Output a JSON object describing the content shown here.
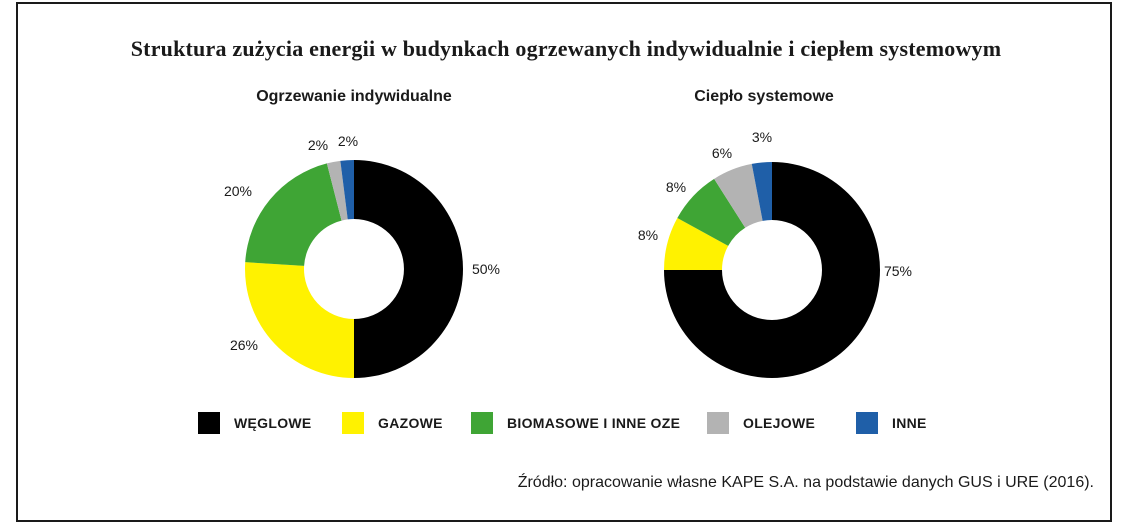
{
  "title": "Struktura zużycia energii w budynkach ogrzewanych indywidualnie i ciepłem systemowym",
  "source": "Źródło: opracowanie własne KAPE S.A. na podstawie danych GUS i URE (2016).",
  "legend": [
    {
      "label": "WĘGLOWE",
      "color": "#000000"
    },
    {
      "label": "GAZOWE",
      "color": "#fff200"
    },
    {
      "label": "BIOMASOWE I INNE OZE",
      "color": "#3fa535"
    },
    {
      "label": "OLEJOWE",
      "color": "#b3b3b3"
    },
    {
      "label": "INNE",
      "color": "#1f5fa8"
    }
  ],
  "chart_data": [
    {
      "type": "pie",
      "subtitle": "Ogrzewanie indywidualne",
      "categories": [
        "WĘGLOWE",
        "GAZOWE",
        "BIOMASOWE I INNE OZE",
        "OLEJOWE",
        "INNE"
      ],
      "values": [
        50,
        26,
        20,
        2,
        2
      ],
      "labels": [
        "50%",
        "26%",
        "20%",
        "2%",
        "2%"
      ]
    },
    {
      "type": "pie",
      "subtitle": "Ciepło systemowe",
      "categories": [
        "WĘGLOWE",
        "GAZOWE",
        "BIOMASOWE I INNE OZE",
        "OLEJOWE",
        "INNE"
      ],
      "values": [
        75,
        8,
        8,
        6,
        3
      ],
      "labels": [
        "75%",
        "8%",
        "8%",
        "6%",
        "3%"
      ]
    }
  ]
}
